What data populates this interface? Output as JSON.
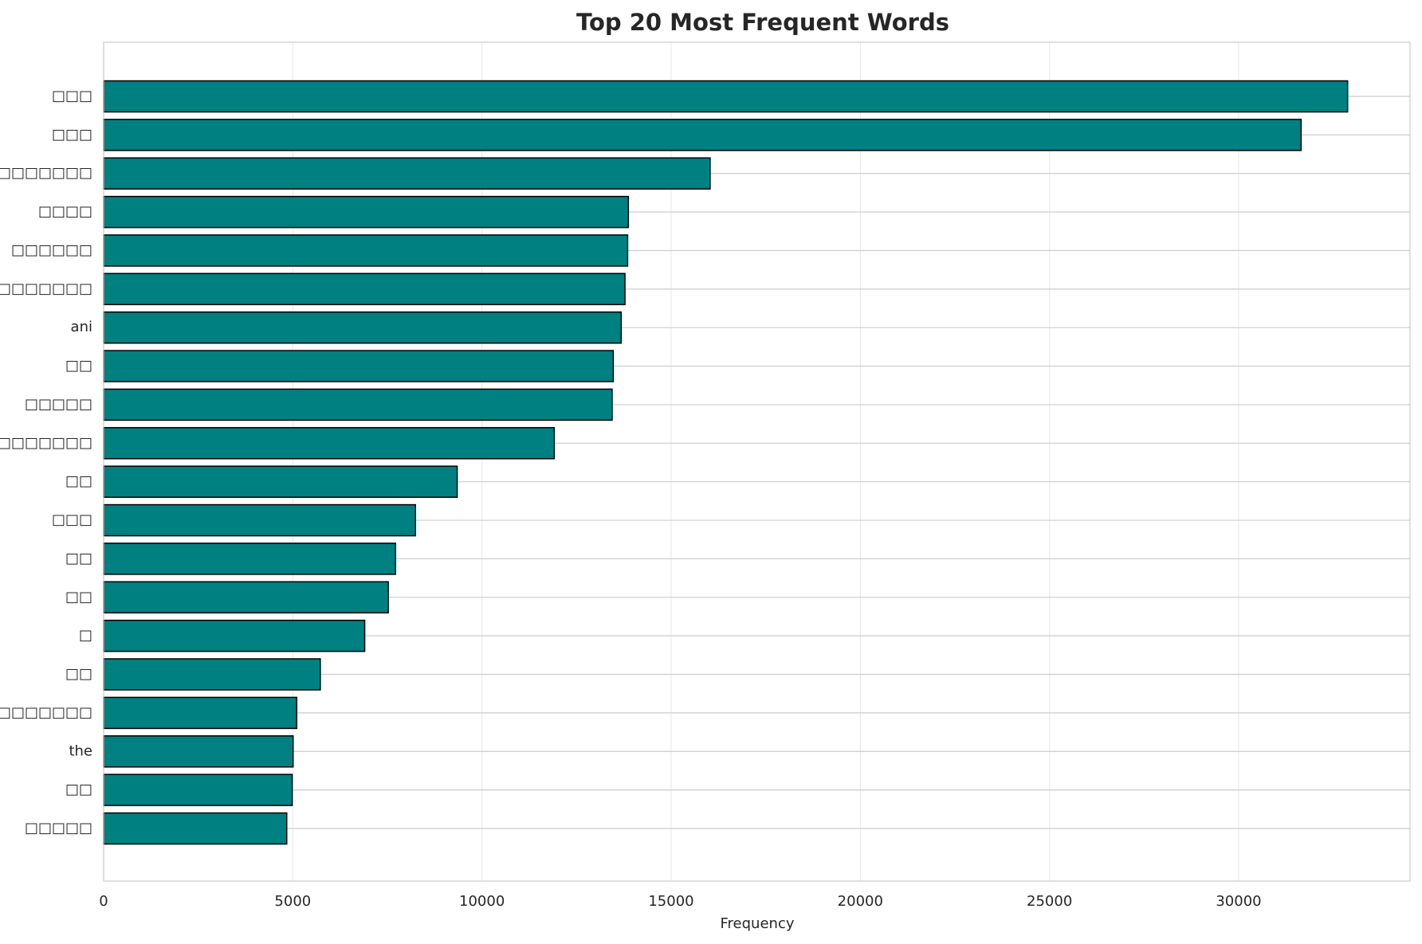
{
  "chart_data": {
    "type": "barh",
    "title": "Top 20 Most Frequent Words",
    "x_label": "Frequency",
    "categories": [
      "□□□",
      "□□□",
      "□□□□□□□",
      "□□□□",
      "□□□□□□",
      "□□□□□□□□",
      "ani",
      "□□",
      "□□□□□",
      "□□□□□□□□",
      "□□",
      "□□□",
      "□□",
      "□□",
      "□",
      "□□",
      "□□□□□□□□",
      "the",
      "□□",
      "□□□□□"
    ],
    "values": [
      32880,
      31650,
      16030,
      13870,
      13850,
      13780,
      13680,
      13470,
      13440,
      11910,
      9345,
      8243,
      7716,
      7524,
      6901,
      5727,
      5104,
      5008,
      4984,
      4840
    ],
    "color": "#008080",
    "edge_color": "#000000",
    "xlim": [
      0,
      34530
    ],
    "xticks": [
      0,
      5000,
      10000,
      15000,
      20000,
      25000,
      30000
    ],
    "grid": true
  }
}
